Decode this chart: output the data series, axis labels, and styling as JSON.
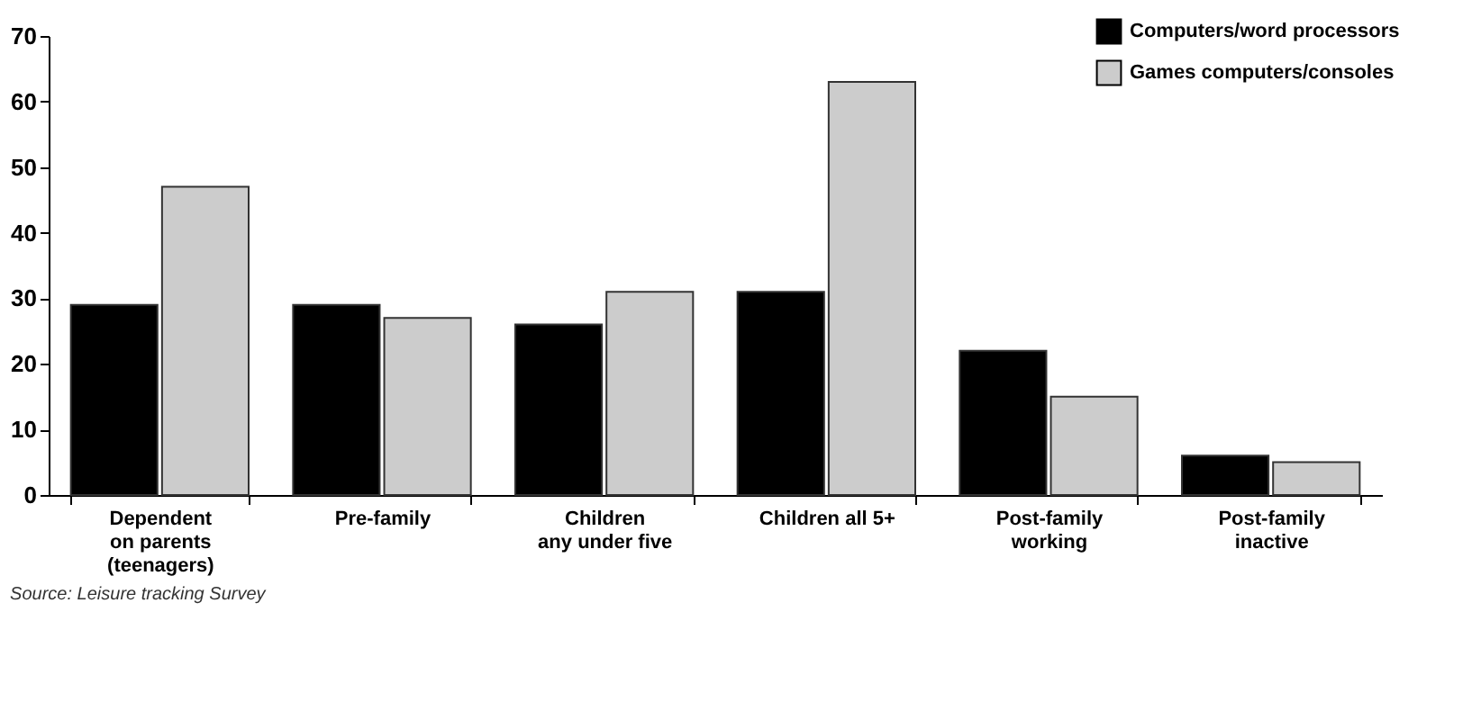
{
  "chart_data": {
    "type": "bar",
    "categories": [
      "Dependent\non parents\n(teenagers)",
      "Pre-family",
      "Children\nany under five",
      "Children all 5+",
      "Post-family\nworking",
      "Post-family\ninactive"
    ],
    "series": [
      {
        "name": "Computers/word processors",
        "color": "#000000",
        "values": [
          29,
          29,
          26,
          31,
          22,
          6
        ]
      },
      {
        "name": "Games computers/consoles",
        "color": "#cccccc",
        "values": [
          47,
          27,
          31,
          63,
          15,
          5
        ]
      }
    ],
    "ylim": [
      0,
      70
    ],
    "yticks": [
      0,
      10,
      20,
      30,
      40,
      50,
      60,
      70
    ],
    "grid": false,
    "legend": "top right",
    "annotations": [
      "Source: Leisure tracking Survey"
    ]
  }
}
